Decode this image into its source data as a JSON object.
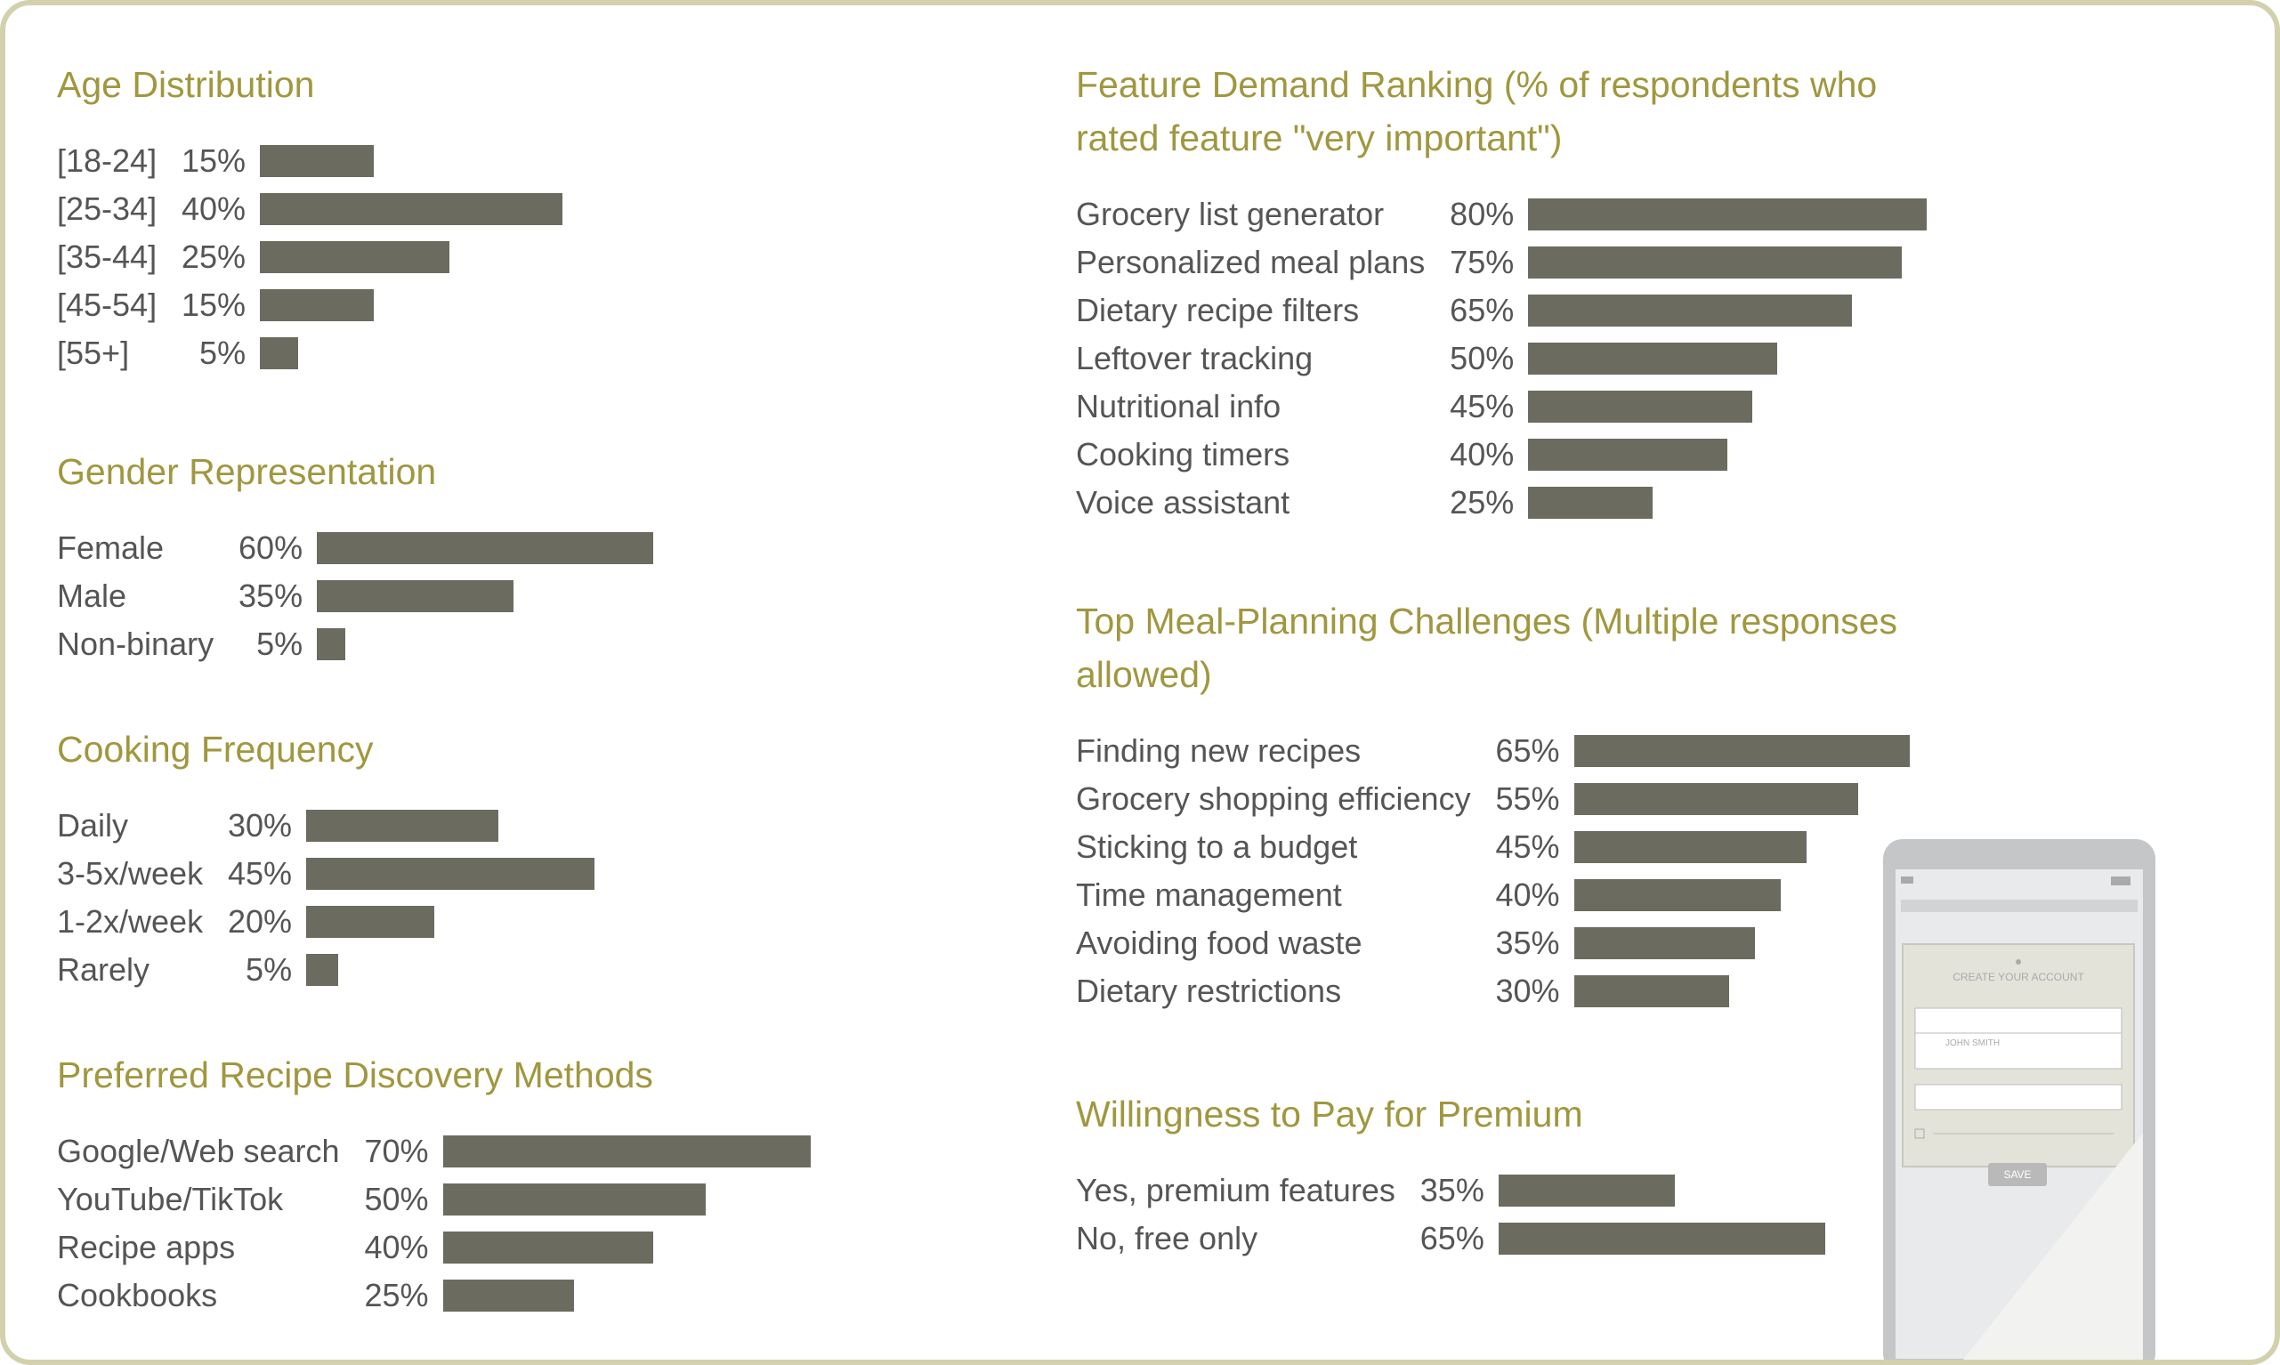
{
  "chart_data": [
    {
      "type": "bar",
      "title": "Age Distribution",
      "categories": [
        "[18-24]",
        "[25-34]",
        "[35-44]",
        "[45-54]",
        "[55+]"
      ],
      "values": [
        15,
        40,
        25,
        15,
        5
      ],
      "value_labels": [
        "15%",
        "40%",
        "25%",
        "15%",
        "5%"
      ],
      "color": "#6b6b60"
    },
    {
      "type": "bar",
      "title": "Gender Representation",
      "categories": [
        "Female",
        "Male",
        "Non-binary"
      ],
      "values": [
        60,
        35,
        5
      ],
      "value_labels": [
        "60%",
        "35%",
        "5%"
      ],
      "color": "#6b6b60"
    },
    {
      "type": "bar",
      "title": "Cooking Frequency",
      "categories": [
        "Daily",
        "3-5x/week",
        "1-2x/week",
        "Rarely"
      ],
      "values": [
        30,
        45,
        20,
        5
      ],
      "value_labels": [
        "30%",
        "45%",
        "20%",
        "5%"
      ],
      "color": "#6b6b60"
    },
    {
      "type": "bar",
      "title": "Preferred Recipe Discovery Methods",
      "categories": [
        "Google/Web search",
        "YouTube/TikTok",
        "Recipe apps",
        "Cookbooks"
      ],
      "values": [
        70,
        50,
        40,
        25
      ],
      "value_labels": [
        "70%",
        "50%",
        "40%",
        "25%"
      ],
      "color": "#6b6b60"
    },
    {
      "type": "bar",
      "title": "Feature Demand Ranking (% of respondents who rated feature \"very important\")",
      "categories": [
        "Grocery list generator",
        "Personalized meal plans",
        "Dietary recipe filters",
        "Leftover tracking",
        "Nutritional info",
        "Cooking timers",
        "Voice assistant"
      ],
      "values": [
        80,
        75,
        65,
        50,
        45,
        40,
        25
      ],
      "value_labels": [
        "80%",
        "75%",
        "65%",
        "50%",
        "45%",
        "40%",
        "25%"
      ],
      "color": "#6b6b60"
    },
    {
      "type": "bar",
      "title": "Top Meal-Planning Challenges (Multiple responses allowed)",
      "categories": [
        "Finding new recipes",
        "Grocery shopping efficiency",
        "Sticking to a budget",
        "Time management",
        "Avoiding food waste",
        "Dietary restrictions"
      ],
      "values": [
        65,
        55,
        45,
        40,
        35,
        30
      ],
      "value_labels": [
        "65%",
        "55%",
        "45%",
        "40%",
        "35%",
        "30%"
      ],
      "color": "#6b6b60"
    },
    {
      "type": "bar",
      "title": "Willingness to Pay for Premium",
      "categories": [
        "Yes, premium features",
        "No, free only"
      ],
      "values": [
        35,
        65
      ],
      "value_labels": [
        "35%",
        "65%"
      ],
      "color": "#6b6b60"
    }
  ],
  "phone": {
    "heading": "CREATE YOUR ACCOUNT",
    "field": "JOHN SMITH",
    "button": "SAVE"
  }
}
